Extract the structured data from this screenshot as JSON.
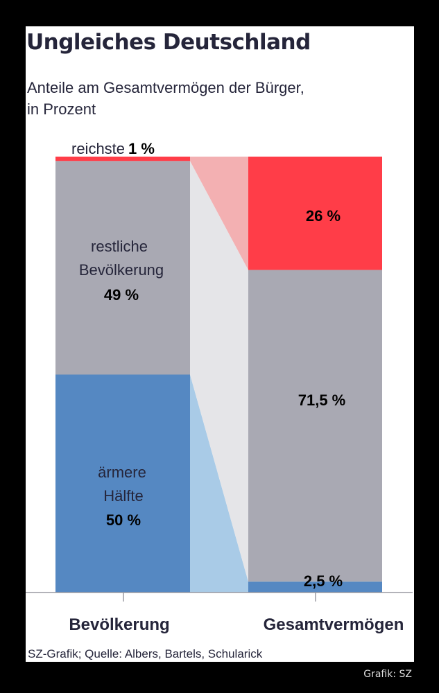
{
  "chart_data": {
    "type": "bar",
    "stacked": true,
    "title": "Ungleiches Deutschland",
    "subtitle_lines": [
      "Anteile am Gesamtvermögen der Bürger,",
      "in Prozent"
    ],
    "categories": [
      "Bevölkerung",
      "Gesamtvermögen"
    ],
    "series": [
      {
        "name": "ärmere Hälfte",
        "values": [
          50,
          2.5
        ],
        "color": "#5588c2",
        "connector_color": "#a9cbe7"
      },
      {
        "name": "restliche Bevölkerung",
        "values": [
          49,
          71.5
        ],
        "color": "#a9a9b3",
        "connector_color": "#e5e5e8"
      },
      {
        "name": "reichste 1 %",
        "values": [
          1,
          26
        ],
        "color": "#ff3d48",
        "connector_color": "#f3b0b2"
      }
    ],
    "labels": {
      "reichste": "reichste",
      "reichste_value": "1 %",
      "restliche_1": "restliche",
      "restliche_2": "Bevölkerung",
      "restliche_value": "49 %",
      "aermere_1": "ärmere",
      "aermere_2": "Hälfte",
      "aermere_value": "50 %",
      "right_top": "26 %",
      "right_mid": "71,5 %",
      "right_bottom": "2,5 %"
    },
    "ylim": [
      0,
      100
    ],
    "source": "SZ-Grafik; Quelle: Albers, Bartels, Schularick",
    "credit": "Grafik: SZ"
  }
}
